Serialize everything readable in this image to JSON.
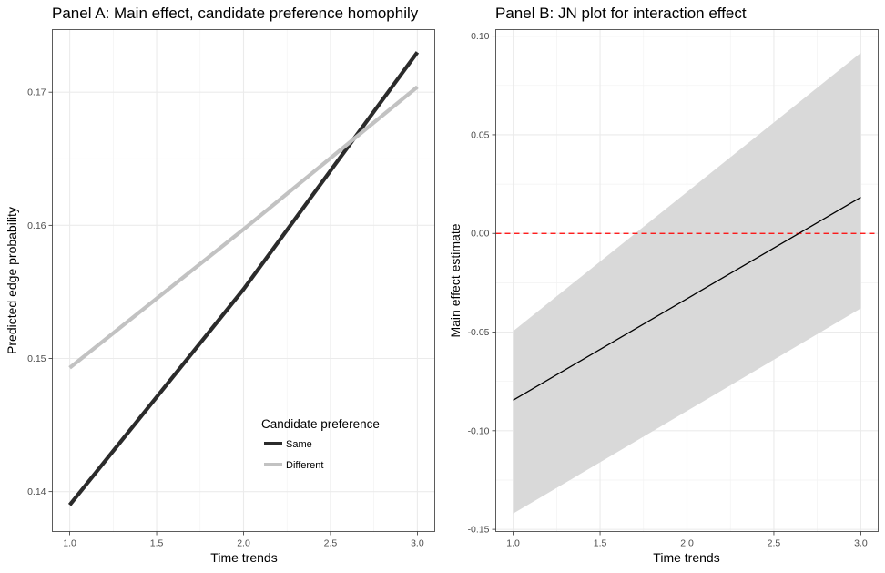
{
  "chart_data": [
    {
      "type": "line",
      "title": "Panel A: Main effect, candidate preference homophily",
      "xlabel": "Time trends",
      "ylabel": "Predicted edge probability",
      "xlim": [
        0.9,
        3.1
      ],
      "ylim": [
        0.137,
        0.1747
      ],
      "x_ticks": [
        1.0,
        1.5,
        2.0,
        2.5,
        3.0
      ],
      "x_tick_labels": [
        "1.0",
        "1.5",
        "2.0",
        "2.5",
        "3.0"
      ],
      "y_ticks": [
        0.14,
        0.15,
        0.16,
        0.17
      ],
      "y_tick_labels": [
        "0.14",
        "0.15",
        "0.16",
        "0.17"
      ],
      "grid": true,
      "legend": {
        "title": "Candidate preference",
        "position": "bottom-right"
      },
      "series": [
        {
          "name": "Same",
          "color": "#2b2b2b",
          "x": [
            1.0,
            2.0,
            3.0
          ],
          "y": [
            0.139,
            0.1552,
            0.173
          ]
        },
        {
          "name": "Different",
          "color": "#c2c2c2",
          "x": [
            1.0,
            2.0,
            3.0
          ],
          "y": [
            0.1493,
            0.1597,
            0.1704
          ]
        }
      ]
    },
    {
      "type": "line",
      "title": "Panel B: JN plot for interaction effect",
      "xlabel": "Time trends",
      "ylabel": "Main effect estimate",
      "xlim": [
        0.9,
        3.1
      ],
      "ylim": [
        -0.1511,
        0.1033
      ],
      "x_ticks": [
        1.0,
        1.5,
        2.0,
        2.5,
        3.0
      ],
      "x_tick_labels": [
        "1.0",
        "1.5",
        "2.0",
        "2.5",
        "3.0"
      ],
      "y_ticks": [
        -0.15,
        -0.1,
        -0.05,
        0.0,
        0.05,
        0.1
      ],
      "y_tick_labels": [
        "-0.15",
        "-0.10",
        "-0.05",
        "0.00",
        "0.05",
        "0.10"
      ],
      "grid": true,
      "series": [
        {
          "color": "#000000",
          "x": [
            1.0,
            3.0
          ],
          "y": [
            -0.0845,
            0.0183
          ]
        }
      ],
      "band": {
        "color": "#d9d9d9",
        "x": [
          1.0,
          3.0
        ],
        "lower": [
          -0.142,
          -0.038
        ],
        "upper": [
          -0.0495,
          0.0915
        ]
      },
      "reference_line": {
        "y": 0.0,
        "color": "#ff0000",
        "style": "dashed"
      }
    }
  ]
}
